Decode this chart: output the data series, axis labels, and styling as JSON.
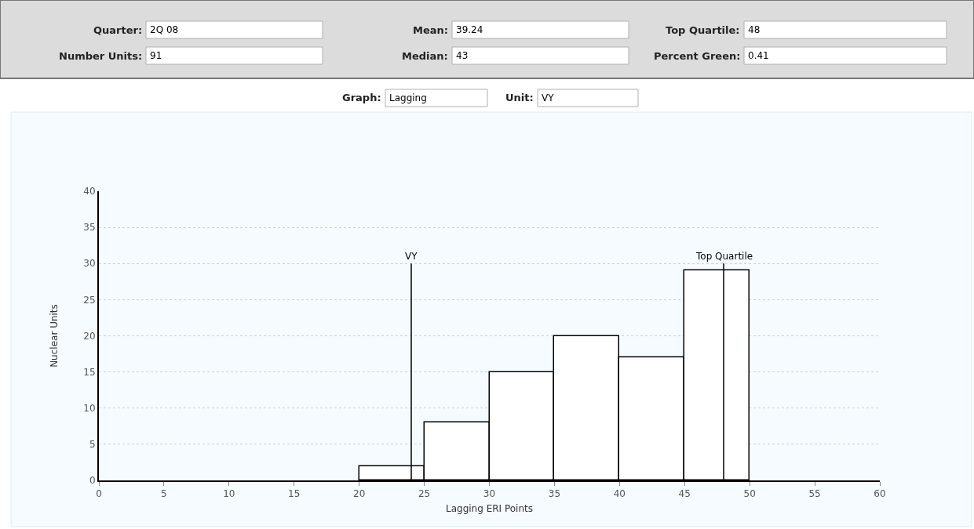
{
  "chart_data": {
    "type": "histogram",
    "xlabel": "Lagging ERI Points",
    "ylabel": "Nuclear Units",
    "bins": [
      20,
      25,
      30,
      35,
      40,
      45,
      50
    ],
    "values": [
      2,
      8,
      15,
      20,
      17,
      29
    ],
    "color": "#ffffff",
    "xlim": [
      0,
      60
    ],
    "xticks": [
      0,
      5,
      10,
      15,
      20,
      25,
      30,
      35,
      40,
      45,
      50,
      55,
      60
    ],
    "ylim": [
      0,
      40
    ],
    "yticks": [
      0,
      5,
      10,
      15,
      20,
      25,
      30,
      35,
      40
    ],
    "grid": "y",
    "ref_lines": [
      {
        "axis": "x",
        "value": 24,
        "label": "VY"
      },
      {
        "axis": "x",
        "value": 48,
        "label": "Top Quartile"
      }
    ],
    "annotations": [
      "Quarter: 2Q 08",
      "Number Units: 91",
      "Mean: 39.24",
      "Median: 43",
      "Top Quartile: 48",
      "Percent Green: 0.41",
      "Graph: Lagging",
      "Unit: VY"
    ]
  }
}
